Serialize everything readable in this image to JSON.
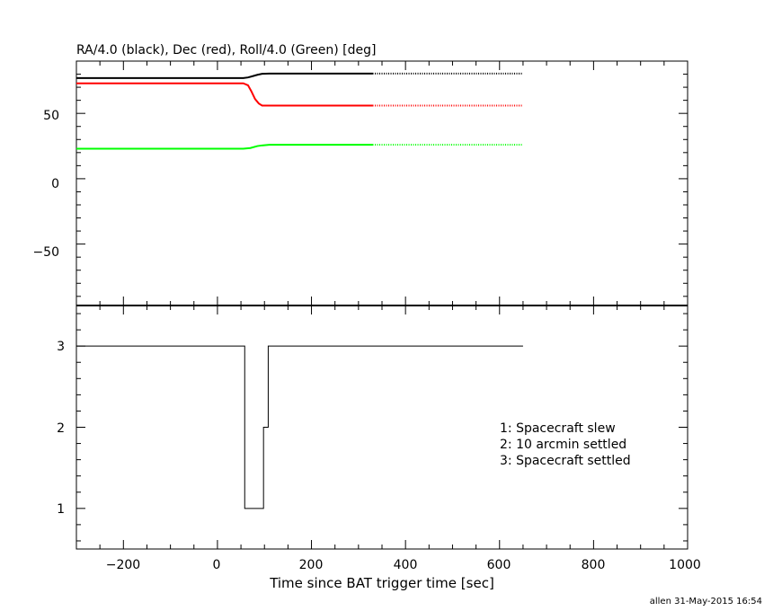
{
  "chart_data": [
    {
      "type": "line",
      "title": "RA/4.0 (black), Dec (red), Roll/4.0 (Green) [deg]",
      "xlim": [
        -300,
        1000
      ],
      "ylim": [
        -97,
        90
      ],
      "y_tick_labels": [
        "50",
        "0",
        "−50"
      ],
      "y_tick_values": [
        50,
        0,
        -50
      ],
      "x_tick_labels": [],
      "grid": false,
      "series": [
        {
          "color": "#000000",
          "x": [
            -300,
            55,
            65,
            75,
            85,
            95,
            110,
            330
          ],
          "y": [
            77,
            77,
            77.5,
            78.5,
            79.5,
            80.3,
            80.5,
            80.5
          ],
          "dotted_x": [
            330,
            650
          ],
          "dotted_y": [
            80.5,
            80.5
          ]
        },
        {
          "color": "#ff0000",
          "x": [
            -300,
            55,
            65,
            72,
            80,
            88,
            95,
            110,
            330
          ],
          "y": [
            73,
            73,
            71.5,
            67,
            61,
            57.5,
            56,
            56,
            56
          ],
          "dotted_x": [
            330,
            650
          ],
          "dotted_y": [
            56,
            56
          ]
        },
        {
          "color": "#00ff00",
          "x": [
            -300,
            55,
            70,
            85,
            95,
            110,
            330
          ],
          "y": [
            23,
            23,
            23.5,
            25,
            25.5,
            26,
            26
          ],
          "dotted_x": [
            330,
            650
          ],
          "dotted_y": [
            26,
            26
          ]
        }
      ]
    },
    {
      "type": "line",
      "step": true,
      "xlim": [
        -300,
        1000
      ],
      "ylim": [
        0.5,
        3.5
      ],
      "xlabel": "Time since BAT trigger time [sec]",
      "x_tick_labels": [
        "−200",
        "0",
        "200",
        "400",
        "600",
        "800",
        "1000"
      ],
      "x_tick_values": [
        -200,
        0,
        200,
        400,
        600,
        800,
        1000
      ],
      "y_tick_labels": [
        "3",
        "2",
        "1"
      ],
      "y_tick_values": [
        3,
        2,
        1
      ],
      "grid": false,
      "annotations": [
        "1: Spacecraft slew",
        "2: 10 arcmin settled",
        "3: Spacecraft settled"
      ],
      "series": [
        {
          "color": "#000000",
          "x": [
            -300,
            58,
            58,
            98,
            98,
            108,
            108,
            650
          ],
          "y": [
            3,
            3,
            1,
            1,
            2,
            2,
            3,
            3
          ]
        }
      ]
    }
  ],
  "footer": "allen 31-May-2015 16:54"
}
